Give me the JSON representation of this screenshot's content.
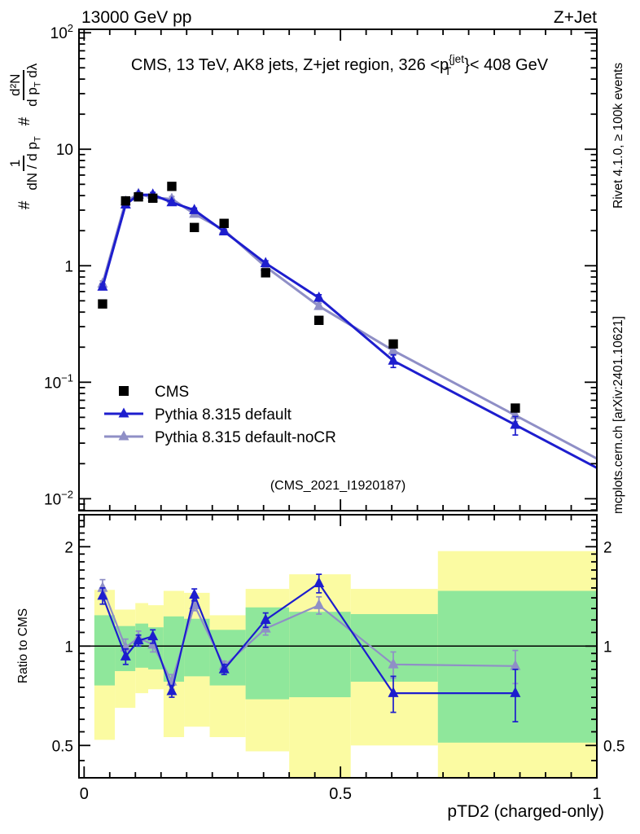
{
  "header": {
    "left": "13000 GeV pp",
    "right": "Z+Jet"
  },
  "title": {
    "pre": "CMS, 13 TeV, AK8 jets, Z+jet region, 326 <p",
    "sup": "{jet",
    "sub": "T",
    "post": "}< 408 GeV"
  },
  "watermark": "(CMS_2021_I1920187)",
  "side_notes": {
    "top_right": "Rivet 4.1.0, ≥ 100k events",
    "bottom_right": "mcplots.cern.ch [arXiv:2401.10621]"
  },
  "ylabel_main": {
    "hash1": "#",
    "frac1_num": "1",
    "frac1_den": "dN / d p",
    "frac1_den_sub": "T",
    "hash2": "#",
    "frac2_num": "d²N",
    "frac2_den": "d p",
    "frac2_den_sub": "T",
    "frac2_den_tail": " dλ"
  },
  "ylabel_ratio": "Ratio to CMS",
  "xlabel": "pTD2 (charged-only)",
  "colors": {
    "cms": "#000000",
    "default": "#1d1dce",
    "nocr": "#8f8fc6",
    "yellow_band": "#fbfba2",
    "green_band": "#8fe79b",
    "watermark": "#b2b2b2",
    "note": "#8f8f8f"
  },
  "legend": {
    "items": [
      {
        "label": "CMS",
        "marker": "square",
        "color_key": "cms"
      },
      {
        "label": "Pythia 8.315 default",
        "marker": "triangle-line",
        "color_key": "default"
      },
      {
        "label": "Pythia 8.315 default-noCR",
        "marker": "triangle-line",
        "color_key": "nocr"
      }
    ]
  },
  "chart_data": {
    "type": "line",
    "title": "CMS, 13 TeV, AK8 jets, Z+jet region, 326 < pT{jet} < 408 GeV",
    "xlabel": "pTD2 (charged-only)",
    "ylabel": "# 1/(dN/dpT) # d²N/(dpT dλ)",
    "ratio_ylabel": "Ratio to CMS",
    "x_range": [
      -0.01,
      1.0
    ],
    "y_main_range": [
      0.0079,
      107
    ],
    "y_ratio_range": [
      0.399,
      2.5
    ],
    "log_y_main": true,
    "log_y_ratio": true,
    "grid": false,
    "legend_position": "upper-left-inside",
    "x": [
      0.036,
      0.081,
      0.106,
      0.134,
      0.171,
      0.215,
      0.273,
      0.354,
      0.458,
      0.603,
      0.841
    ],
    "bin_edges": [
      0.02,
      0.06,
      0.1,
      0.125,
      0.155,
      0.195,
      0.245,
      0.315,
      0.4,
      0.52,
      0.69,
      1.0
    ],
    "x_ticks": [
      {
        "v": 0,
        "label": "0"
      },
      {
        "v": 0.5,
        "label": "0.5"
      },
      {
        "v": 1,
        "label": "1"
      }
    ],
    "x_minor_step": 0.05,
    "y_main_ticks": [
      {
        "v": 100,
        "base": "10",
        "exp": "2"
      },
      {
        "v": 10,
        "base": "10",
        "exp": ""
      },
      {
        "v": 1,
        "base": "1",
        "exp": ""
      },
      {
        "v": 0.1,
        "base": "10",
        "exp": "−1"
      },
      {
        "v": 0.01,
        "base": "10",
        "exp": "−2"
      }
    ],
    "y_ratio_ticks": [
      {
        "v": 2,
        "label": "2"
      },
      {
        "v": 1,
        "label": "1"
      },
      {
        "v": 0.5,
        "label": "0.5"
      }
    ],
    "ratio_reference": 1,
    "series": [
      {
        "name": "CMS",
        "marker": "square",
        "color_key": "cms",
        "values": [
          0.47,
          3.6,
          3.9,
          3.8,
          4.8,
          2.13,
          2.31,
          0.87,
          0.34,
          0.213,
          0.06
        ]
      },
      {
        "name": "Pythia 8.315 default",
        "marker": "triangle",
        "color_key": "default",
        "values": [
          0.66,
          3.35,
          4.06,
          4.07,
          3.5,
          3.0,
          1.97,
          1.05,
          0.53,
          0.153,
          0.043
        ],
        "ratio": [
          1.42,
          0.93,
          1.04,
          1.07,
          0.73,
          1.43,
          0.85,
          1.2,
          1.55,
          0.72,
          0.72
        ],
        "ratio_err": [
          0.08,
          0.05,
          0.04,
          0.05,
          0.03,
          0.06,
          0.03,
          0.06,
          0.1,
          0.09,
          0.13
        ]
      },
      {
        "name": "Pythia 8.315 default-noCR",
        "marker": "triangle",
        "color_key": "nocr",
        "values": [
          0.7,
          3.56,
          4.13,
          3.84,
          3.74,
          2.79,
          2.02,
          0.98,
          0.45,
          0.187,
          0.052
        ],
        "ratio": [
          1.5,
          0.99,
          1.06,
          1.01,
          0.78,
          1.33,
          0.87,
          1.13,
          1.33,
          0.88,
          0.87
        ],
        "ratio_err": [
          0.09,
          0.06,
          0.05,
          0.05,
          0.04,
          0.05,
          0.03,
          0.05,
          0.08,
          0.08,
          0.1
        ]
      }
    ],
    "bands": {
      "description": "CMS data uncertainty bands in ratio panel",
      "green_color_key": "green_band",
      "yellow_color_key": "yellow_band",
      "bins": [
        {
          "x0": 0.02,
          "x1": 0.06,
          "yellow": [
            0.52,
            1.48
          ],
          "green": [
            0.76,
            1.24
          ]
        },
        {
          "x0": 0.06,
          "x1": 0.1,
          "yellow": [
            0.65,
            1.29
          ],
          "green": [
            0.84,
            1.15
          ]
        },
        {
          "x0": 0.1,
          "x1": 0.125,
          "yellow": [
            0.72,
            1.35
          ],
          "green": [
            0.86,
            1.17
          ]
        },
        {
          "x0": 0.125,
          "x1": 0.155,
          "yellow": [
            0.74,
            1.33
          ],
          "green": [
            0.85,
            1.14
          ]
        },
        {
          "x0": 0.155,
          "x1": 0.195,
          "yellow": [
            0.53,
            1.47
          ],
          "green": [
            0.78,
            1.23
          ]
        },
        {
          "x0": 0.195,
          "x1": 0.245,
          "yellow": [
            0.57,
            1.45
          ],
          "green": [
            0.81,
            1.21
          ]
        },
        {
          "x0": 0.245,
          "x1": 0.315,
          "yellow": [
            0.53,
            1.24
          ],
          "green": [
            0.76,
            1.12
          ]
        },
        {
          "x0": 0.315,
          "x1": 0.4,
          "yellow": [
            0.48,
            1.49
          ],
          "green": [
            0.69,
            1.31
          ]
        },
        {
          "x0": 0.4,
          "x1": 0.52,
          "yellow": [
            0.38,
            1.65
          ],
          "green": [
            0.7,
            1.27
          ]
        },
        {
          "x0": 0.52,
          "x1": 0.69,
          "yellow": [
            0.5,
            1.49
          ],
          "green": [
            0.78,
            1.25
          ]
        },
        {
          "x0": 0.69,
          "x1": 1.0,
          "yellow": [
            0.38,
            1.94
          ],
          "green": [
            0.51,
            1.47
          ]
        }
      ]
    }
  }
}
